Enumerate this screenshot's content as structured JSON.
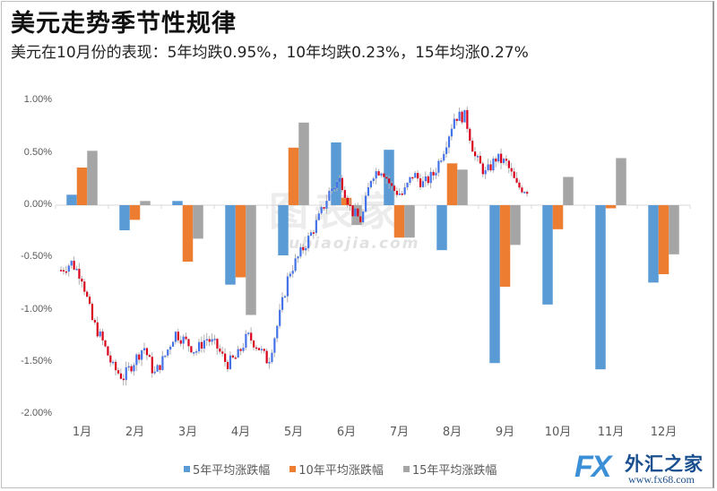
{
  "header": {
    "title": "美元走势季节性规律",
    "subtitle": "美元在10月份的表现：5年均跌0.95%，10年均跌0.23%，15年均涨0.27%"
  },
  "watermark": {
    "main": "图表家",
    "sub": "tubiaojia.com"
  },
  "logo": {
    "fx": "FX",
    "cn": "外汇之家",
    "url": "www.fx68.com"
  },
  "colors": {
    "five_year": "#5b9bd5",
    "ten_year": "#ed7d31",
    "fifteen_year": "#a5a5a5",
    "candle_up": "#4472e8",
    "candle_down": "#d9001b"
  },
  "chart_data": {
    "type": "bar",
    "title": "美元走势季节性规律",
    "subtitle": "美元在10月份的表现：5年均跌0.95%，10年均跌0.23%，15年均涨0.27%",
    "xlabel": "",
    "ylabel": "",
    "ylim": [
      -2.0,
      1.0
    ],
    "yticks": [
      "1.00%",
      "0.50%",
      "0.00%",
      "-0.50%",
      "-1.00%",
      "-1.50%",
      "-2.00%"
    ],
    "categories": [
      "1月",
      "2月",
      "3月",
      "4月",
      "5月",
      "6月",
      "7月",
      "8月",
      "9月",
      "10月",
      "11月",
      "12月"
    ],
    "series": [
      {
        "name": "5年平均涨跌幅",
        "color": "#5b9bd5",
        "values": [
          0.1,
          -0.24,
          0.04,
          -0.76,
          -0.48,
          0.6,
          0.53,
          -0.43,
          -1.51,
          -0.95,
          -1.57,
          -0.74
        ]
      },
      {
        "name": "10年平均涨跌幅",
        "color": "#ed7d31",
        "values": [
          0.36,
          -0.14,
          -0.54,
          -0.69,
          0.55,
          0.07,
          -0.31,
          0.4,
          -0.78,
          -0.23,
          -0.03,
          -0.66
        ]
      },
      {
        "name": "15年平均涨跌幅",
        "color": "#a5a5a5",
        "values": [
          0.52,
          0.04,
          -0.32,
          -1.05,
          0.79,
          -0.19,
          -0.31,
          0.34,
          -0.38,
          0.27,
          0.45,
          -0.47
        ]
      }
    ],
    "overlay": {
      "type": "candlestick",
      "description": "2019年美元指数累计涨跌幅日K线（1月至9月中旬）",
      "approx_close_path": [
        -0.62,
        -0.55,
        -0.68,
        -1.1,
        -1.3,
        -1.55,
        -1.65,
        -1.5,
        -1.35,
        -1.62,
        -1.45,
        -1.22,
        -1.3,
        -1.4,
        -1.27,
        -1.35,
        -1.52,
        -1.45,
        -1.25,
        -1.35,
        -1.5,
        -1.1,
        -0.65,
        -0.48,
        -0.3,
        -0.1,
        0.15,
        0.25,
        -0.05,
        -0.15,
        0.3,
        0.35,
        0.15,
        0.1,
        0.3,
        0.2,
        0.3,
        0.55,
        0.85,
        0.85,
        0.45,
        0.3,
        0.45,
        0.4,
        0.18,
        0.15
      ]
    },
    "legend_position": "bottom",
    "grid": false
  }
}
